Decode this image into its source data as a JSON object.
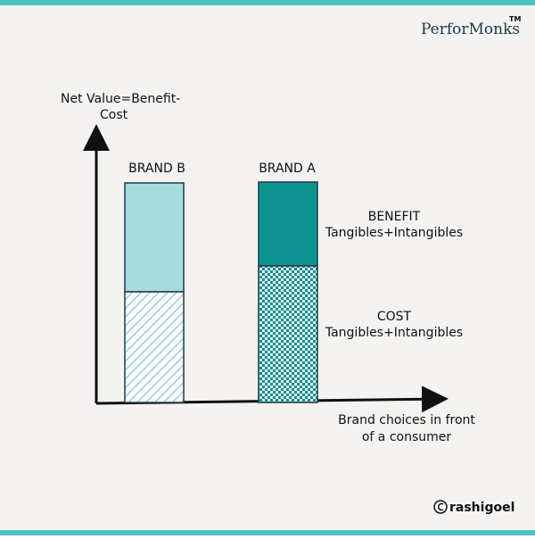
{
  "logo": {
    "text": "PerforMonks",
    "mark": "TM"
  },
  "y_axis_label": [
    "Net Value=Benefit-",
    "Cost"
  ],
  "x_axis_label": [
    "Brand choices in front",
    "of a consumer"
  ],
  "brands": [
    {
      "label": "BRAND B"
    },
    {
      "label": "BRAND A"
    }
  ],
  "legend": [
    {
      "title": "BENEFIT",
      "subtitle": "Tangibles+Intangibles"
    },
    {
      "title": "COST",
      "subtitle": "Tangibles+Intangibles"
    }
  ],
  "credit": "rashigoel"
}
